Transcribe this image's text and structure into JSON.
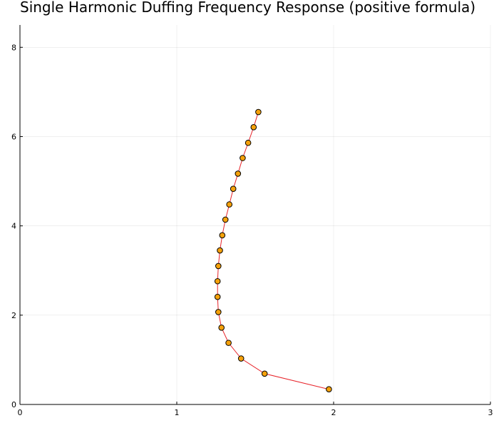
{
  "chart_data": {
    "type": "line",
    "title": "Single Harmonic Duffing Frequency Response (positive formula)",
    "xlabel": "",
    "ylabel": "",
    "xlim": [
      0,
      3
    ],
    "ylim": [
      0,
      8.5
    ],
    "x_ticks": [
      0,
      1,
      2,
      3
    ],
    "y_ticks": [
      0,
      2,
      4,
      6,
      8
    ],
    "x_tick_labels": [
      "0",
      "1",
      "2",
      "3"
    ],
    "y_tick_labels": [
      "0",
      "2",
      "4",
      "6",
      "8"
    ],
    "grid": true,
    "legend": "none",
    "series": [
      {
        "line_color": "#e8242a",
        "marker_color": "#f5a10a",
        "marker_edge_color": "#000000",
        "marker": "circle",
        "points": [
          {
            "x": 1.97,
            "y": 0.34
          },
          {
            "x": 1.56,
            "y": 0.69
          },
          {
            "x": 1.41,
            "y": 1.03
          },
          {
            "x": 1.33,
            "y": 1.38
          },
          {
            "x": 1.285,
            "y": 1.72
          },
          {
            "x": 1.265,
            "y": 2.07
          },
          {
            "x": 1.26,
            "y": 2.41
          },
          {
            "x": 1.26,
            "y": 2.76
          },
          {
            "x": 1.265,
            "y": 3.1
          },
          {
            "x": 1.275,
            "y": 3.45
          },
          {
            "x": 1.29,
            "y": 3.79
          },
          {
            "x": 1.31,
            "y": 4.14
          },
          {
            "x": 1.335,
            "y": 4.48
          },
          {
            "x": 1.36,
            "y": 4.83
          },
          {
            "x": 1.39,
            "y": 5.17
          },
          {
            "x": 1.42,
            "y": 5.52
          },
          {
            "x": 1.455,
            "y": 5.86
          },
          {
            "x": 1.49,
            "y": 6.21
          },
          {
            "x": 1.52,
            "y": 6.55
          }
        ]
      }
    ]
  }
}
